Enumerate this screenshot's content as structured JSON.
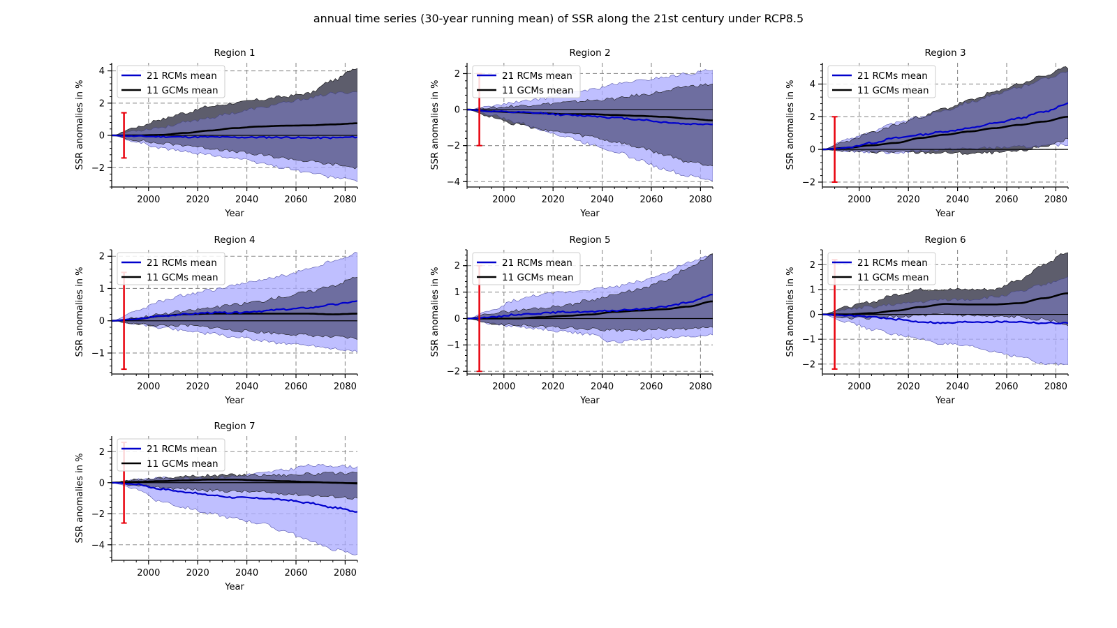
{
  "figure": {
    "suptitle": "annual time series (30-year running mean) of SSR along the 21st century under RCP8.5"
  },
  "colors": {
    "rcm_line": "#0000cc",
    "rcm_band": "#aaaaff",
    "gcm_line": "#000000",
    "gcm_band": "#808080",
    "overlap_band": "#555577",
    "variability_bar": "#e8000b",
    "grid": "#8c8c8c"
  },
  "chart_data": [
    {
      "type": "area",
      "title": "Region 1",
      "xlabel": "Year",
      "ylabel": "SSR anomalies in %",
      "xlim": [
        1985,
        2085
      ],
      "ylim": [
        -3.2,
        4.5
      ],
      "xticks": [
        2000,
        2020,
        2040,
        2060,
        2080
      ],
      "yticks": [
        -2,
        0,
        2,
        4
      ],
      "grid": true,
      "legend": "top-left",
      "x": [
        1985,
        1995,
        2005,
        2015,
        2025,
        2035,
        2045,
        2055,
        2065,
        2075,
        2085
      ],
      "series": [
        {
          "name": "21 RCMs mean",
          "mean": [
            0,
            -0.05,
            -0.08,
            -0.1,
            -0.1,
            -0.12,
            -0.12,
            -0.12,
            -0.15,
            -0.15,
            -0.1
          ],
          "low": [
            0,
            -0.4,
            -0.8,
            -1.0,
            -1.2,
            -1.4,
            -1.7,
            -2.0,
            -2.3,
            -2.6,
            -2.8
          ],
          "high": [
            0,
            0.3,
            0.5,
            0.8,
            1.1,
            1.4,
            1.7,
            2.0,
            2.3,
            2.6,
            2.7
          ]
        },
        {
          "name": "11 GCMs mean",
          "mean": [
            0,
            0,
            0.03,
            0.15,
            0.3,
            0.45,
            0.55,
            0.6,
            0.62,
            0.68,
            0.75
          ],
          "low": [
            0,
            -0.3,
            -0.5,
            -0.6,
            -0.8,
            -1.0,
            -1.2,
            -1.4,
            -1.6,
            -1.8,
            -2.0
          ],
          "high": [
            0,
            0.5,
            1.0,
            1.4,
            1.8,
            2.0,
            2.2,
            2.4,
            2.6,
            3.4,
            4.2
          ]
        }
      ],
      "variability_bar": {
        "x": 1990,
        "low": -1.4,
        "high": 1.4
      }
    },
    {
      "type": "area",
      "title": "Region 2",
      "xlabel": "Year",
      "ylabel": "SSR anomalies in %",
      "xlim": [
        1985,
        2085
      ],
      "ylim": [
        -4.3,
        2.6
      ],
      "xticks": [
        2000,
        2020,
        2040,
        2060,
        2080
      ],
      "yticks": [
        -4,
        -2,
        0,
        2
      ],
      "grid": true,
      "legend": "top-left",
      "x": [
        1985,
        1995,
        2005,
        2015,
        2025,
        2035,
        2045,
        2055,
        2065,
        2075,
        2085
      ],
      "series": [
        {
          "name": "21 RCMs mean",
          "mean": [
            0,
            -0.1,
            -0.15,
            -0.2,
            -0.3,
            -0.35,
            -0.45,
            -0.55,
            -0.7,
            -0.8,
            -0.8
          ],
          "low": [
            0,
            -0.3,
            -0.7,
            -1.1,
            -1.5,
            -1.9,
            -2.3,
            -2.8,
            -3.3,
            -3.7,
            -3.9
          ],
          "high": [
            0,
            0.2,
            0.4,
            0.6,
            0.9,
            1.1,
            1.4,
            1.6,
            1.8,
            2.0,
            2.2
          ]
        },
        {
          "name": "11 GCMs mean",
          "mean": [
            0,
            -0.1,
            -0.15,
            -0.2,
            -0.25,
            -0.25,
            -0.3,
            -0.35,
            -0.4,
            -0.5,
            -0.6
          ],
          "low": [
            0,
            -0.4,
            -0.8,
            -1.1,
            -1.3,
            -1.5,
            -1.8,
            -2.1,
            -2.5,
            -2.9,
            -3.1
          ],
          "high": [
            0,
            0.1,
            0.2,
            0.3,
            0.4,
            0.5,
            0.6,
            0.8,
            1.0,
            1.3,
            1.4
          ]
        }
      ],
      "variability_bar": {
        "x": 1990,
        "low": -2.0,
        "high": 2.0
      }
    },
    {
      "type": "area",
      "title": "Region 3",
      "xlabel": "Year",
      "ylabel": "SSR anomalies in %",
      "xlim": [
        1985,
        2085
      ],
      "ylim": [
        -2.3,
        5.3
      ],
      "xticks": [
        2000,
        2020,
        2040,
        2060,
        2080
      ],
      "yticks": [
        -2,
        0,
        2,
        4
      ],
      "grid": true,
      "legend": "top-left",
      "x": [
        1985,
        1995,
        2005,
        2015,
        2025,
        2035,
        2045,
        2055,
        2065,
        2075,
        2085
      ],
      "series": [
        {
          "name": "21 RCMs mean",
          "mean": [
            0,
            0.1,
            0.4,
            0.7,
            0.9,
            1.1,
            1.3,
            1.6,
            1.9,
            2.3,
            2.8
          ],
          "low": [
            0,
            -0.1,
            -0.15,
            -0.2,
            -0.1,
            0,
            0.05,
            0.1,
            0.15,
            0.2,
            0.3
          ],
          "high": [
            0,
            0.6,
            1.1,
            1.6,
            2.0,
            2.4,
            2.9,
            3.3,
            3.8,
            4.3,
            4.8
          ]
        },
        {
          "name": "11 GCMs mean",
          "mean": [
            0,
            0.1,
            0.25,
            0.4,
            0.7,
            0.9,
            1.1,
            1.3,
            1.5,
            1.7,
            2.0
          ],
          "low": [
            0,
            -0.1,
            -0.15,
            -0.15,
            -0.2,
            -0.2,
            -0.25,
            -0.2,
            -0.1,
            0.2,
            0.6
          ],
          "high": [
            0,
            0.5,
            1.0,
            1.5,
            2.0,
            2.5,
            3.0,
            3.5,
            4.0,
            4.5,
            5.0
          ]
        }
      ],
      "variability_bar": {
        "x": 1990,
        "low": -2.0,
        "high": 2.0
      }
    },
    {
      "type": "area",
      "title": "Region 4",
      "xlabel": "Year",
      "ylabel": "SSR anomalies in %",
      "xlim": [
        1985,
        2085
      ],
      "ylim": [
        -1.65,
        2.2
      ],
      "xticks": [
        2000,
        2020,
        2040,
        2060,
        2080
      ],
      "yticks": [
        -1,
        0,
        1,
        2
      ],
      "grid": true,
      "legend": "top-left",
      "x": [
        1985,
        1995,
        2005,
        2015,
        2025,
        2035,
        2045,
        2055,
        2065,
        2075,
        2085
      ],
      "series": [
        {
          "name": "21 RCMs mean",
          "mean": [
            0,
            0.05,
            0.15,
            0.2,
            0.25,
            0.25,
            0.3,
            0.35,
            0.4,
            0.5,
            0.6
          ],
          "low": [
            0,
            -0.1,
            -0.2,
            -0.3,
            -0.4,
            -0.5,
            -0.6,
            -0.7,
            -0.75,
            -0.85,
            -0.95
          ],
          "high": [
            0,
            0.3,
            0.6,
            0.8,
            0.95,
            1.1,
            1.25,
            1.4,
            1.6,
            1.85,
            2.1
          ]
        },
        {
          "name": "11 GCMs mean",
          "mean": [
            0,
            0.05,
            0.15,
            0.2,
            0.22,
            0.22,
            0.22,
            0.22,
            0.22,
            0.2,
            0.22
          ],
          "low": [
            0,
            -0.1,
            -0.15,
            -0.15,
            -0.2,
            -0.3,
            -0.35,
            -0.4,
            -0.45,
            -0.5,
            -0.55
          ],
          "high": [
            0,
            0.1,
            0.2,
            0.3,
            0.4,
            0.5,
            0.6,
            0.75,
            0.9,
            1.1,
            1.35
          ]
        }
      ],
      "variability_bar": {
        "x": 1990,
        "low": -1.5,
        "high": 1.5
      }
    },
    {
      "type": "area",
      "title": "Region 5",
      "xlabel": "Year",
      "ylabel": "SSR anomalies in %",
      "xlim": [
        1985,
        2085
      ],
      "ylim": [
        -2.1,
        2.6
      ],
      "xticks": [
        2000,
        2020,
        2040,
        2060,
        2080
      ],
      "yticks": [
        -2,
        -1,
        0,
        1,
        2
      ],
      "grid": true,
      "legend": "top-left",
      "x": [
        1985,
        1995,
        2005,
        2015,
        2025,
        2035,
        2045,
        2055,
        2065,
        2075,
        2085
      ],
      "series": [
        {
          "name": "21 RCMs mean",
          "mean": [
            0,
            0.05,
            0.15,
            0.2,
            0.25,
            0.25,
            0.3,
            0.35,
            0.45,
            0.6,
            0.9
          ],
          "low": [
            0,
            -0.2,
            -0.3,
            -0.4,
            -0.5,
            -0.6,
            -0.9,
            -0.8,
            -0.75,
            -0.7,
            -0.6
          ],
          "high": [
            0,
            0.3,
            0.7,
            0.9,
            1.0,
            1.1,
            1.2,
            1.4,
            1.7,
            2.1,
            2.4
          ]
        },
        {
          "name": "11 GCMs mean",
          "mean": [
            0,
            0,
            0,
            0.05,
            0.1,
            0.15,
            0.25,
            0.3,
            0.35,
            0.45,
            0.65
          ],
          "low": [
            0,
            -0.2,
            -0.25,
            -0.3,
            -0.35,
            -0.4,
            -0.45,
            -0.45,
            -0.4,
            -0.4,
            -0.35
          ],
          "high": [
            0,
            0.2,
            0.3,
            0.4,
            0.5,
            0.7,
            0.9,
            1.1,
            1.4,
            1.9,
            2.4
          ]
        }
      ],
      "variability_bar": {
        "x": 1990,
        "low": -2.0,
        "high": 2.0
      }
    },
    {
      "type": "area",
      "title": "Region 6",
      "xlabel": "Year",
      "ylabel": "SSR anomalies in %",
      "xlim": [
        1985,
        2085
      ],
      "ylim": [
        -2.4,
        2.6
      ],
      "xticks": [
        2000,
        2020,
        2040,
        2060,
        2080
      ],
      "yticks": [
        -2,
        -1,
        0,
        1,
        2
      ],
      "grid": true,
      "legend": "top-left",
      "x": [
        1985,
        1995,
        2005,
        2015,
        2025,
        2035,
        2045,
        2055,
        2065,
        2075,
        2085
      ],
      "series": [
        {
          "name": "21 RCMs mean",
          "mean": [
            0,
            -0.05,
            -0.1,
            -0.2,
            -0.3,
            -0.35,
            -0.3,
            -0.3,
            -0.3,
            -0.35,
            -0.35
          ],
          "low": [
            0,
            -0.3,
            -0.6,
            -0.8,
            -1.0,
            -1.2,
            -1.3,
            -1.5,
            -1.7,
            -2.0,
            -2.0
          ],
          "high": [
            0,
            0.2,
            0.3,
            0.4,
            0.5,
            0.6,
            0.6,
            0.7,
            0.9,
            1.2,
            1.5
          ]
        },
        {
          "name": "11 GCMs mean",
          "mean": [
            0,
            0,
            0.05,
            0.15,
            0.3,
            0.42,
            0.4,
            0.4,
            0.45,
            0.65,
            0.85
          ],
          "low": [
            0,
            -0.15,
            -0.15,
            -0.1,
            -0.05,
            0,
            -0.05,
            -0.1,
            -0.1,
            -0.2,
            -0.4
          ],
          "high": [
            0,
            0.3,
            0.5,
            0.8,
            1.0,
            1.0,
            1.0,
            1.0,
            1.4,
            2.0,
            2.5
          ]
        }
      ],
      "variability_bar": {
        "x": 1990,
        "low": -2.2,
        "high": 2.2
      }
    },
    {
      "type": "area",
      "title": "Region 7",
      "xlabel": "Year",
      "ylabel": "SSR anomalies in %",
      "xlim": [
        1985,
        2085
      ],
      "ylim": [
        -5.0,
        3.0
      ],
      "xticks": [
        2000,
        2020,
        2040,
        2060,
        2080
      ],
      "yticks": [
        -4,
        -2,
        0,
        2
      ],
      "grid": true,
      "legend": "top-left",
      "x": [
        1985,
        1995,
        2005,
        2015,
        2025,
        2035,
        2045,
        2055,
        2065,
        2075,
        2085
      ],
      "series": [
        {
          "name": "21 RCMs mean",
          "mean": [
            0,
            -0.1,
            -0.4,
            -0.6,
            -0.8,
            -0.95,
            -1.0,
            -1.1,
            -1.3,
            -1.6,
            -1.85
          ],
          "low": [
            0,
            -0.4,
            -1.2,
            -1.6,
            -2.0,
            -2.3,
            -2.6,
            -3.1,
            -3.7,
            -4.3,
            -4.6
          ],
          "high": [
            0,
            0.2,
            0.3,
            0.3,
            0.3,
            0.4,
            0.6,
            0.8,
            1.1,
            1.1,
            1.0
          ]
        },
        {
          "name": "11 GCMs mean",
          "mean": [
            0,
            0.05,
            0.1,
            0.15,
            0.2,
            0.2,
            0.15,
            0.1,
            0.05,
            0,
            -0.05
          ],
          "low": [
            0,
            -0.2,
            -0.3,
            -0.4,
            -0.5,
            -0.55,
            -0.6,
            -0.7,
            -0.8,
            -0.9,
            -1.0
          ],
          "high": [
            0,
            0.2,
            0.3,
            0.4,
            0.45,
            0.5,
            0.5,
            0.5,
            0.55,
            0.6,
            0.6
          ]
        }
      ],
      "variability_bar": {
        "x": 1990,
        "low": -2.6,
        "high": 2.6
      }
    }
  ]
}
